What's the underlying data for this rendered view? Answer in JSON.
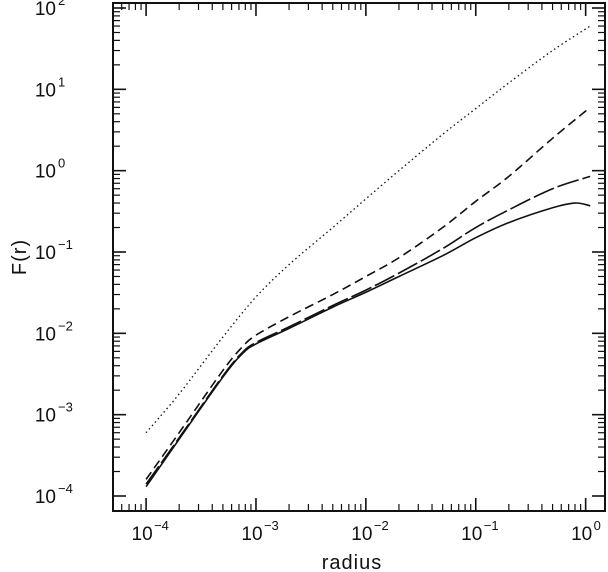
{
  "chart_data": {
    "type": "line",
    "title": "",
    "xlabel": "radius",
    "ylabel": "F(r)",
    "xscale": "log",
    "yscale": "log",
    "xlim": [
      5e-05,
      1.5
    ],
    "ylim": [
      0.0001,
      100
    ],
    "grid": false,
    "legend": "none",
    "x_ticks": [
      {
        "base": "10",
        "exp": "−4",
        "value": 0.0001
      },
      {
        "base": "10",
        "exp": "−3",
        "value": 0.001
      },
      {
        "base": "10",
        "exp": "−2",
        "value": 0.01
      },
      {
        "base": "10",
        "exp": "−1",
        "value": 0.1
      },
      {
        "base": "10",
        "exp": "0",
        "value": 1
      }
    ],
    "y_ticks": [
      {
        "base": "10",
        "exp": "−4",
        "value": 0.0001
      },
      {
        "base": "10",
        "exp": "−3",
        "value": 0.001
      },
      {
        "base": "10",
        "exp": "−2",
        "value": 0.01
      },
      {
        "base": "10",
        "exp": "−1",
        "value": 0.1
      },
      {
        "base": "10",
        "exp": "0",
        "value": 1
      },
      {
        "base": "10",
        "exp": "1",
        "value": 10
      },
      {
        "base": "10",
        "exp": "2",
        "value": 100
      }
    ],
    "series": [
      {
        "style": "dotted",
        "x": [
          0.0001,
          0.0002,
          0.0005,
          0.001,
          0.002,
          0.005,
          0.01,
          0.02,
          0.05,
          0.1,
          0.2,
          0.5,
          1.1
        ],
        "y": [
          0.0006,
          0.0018,
          0.009,
          0.028,
          0.07,
          0.2,
          0.45,
          1.0,
          2.8,
          5.8,
          12,
          30,
          60
        ]
      },
      {
        "style": "dashed",
        "x": [
          0.0001,
          0.0002,
          0.0005,
          0.00075,
          0.001,
          0.002,
          0.005,
          0.01,
          0.02,
          0.05,
          0.1,
          0.2,
          0.5,
          1.1
        ],
        "y": [
          0.00016,
          0.0006,
          0.0035,
          0.0068,
          0.0095,
          0.016,
          0.03,
          0.05,
          0.085,
          0.2,
          0.42,
          0.85,
          2.5,
          6
        ]
      },
      {
        "style": "long-dash",
        "x": [
          0.0001,
          0.0002,
          0.0005,
          0.00075,
          0.001,
          0.002,
          0.005,
          0.01,
          0.02,
          0.05,
          0.1,
          0.2,
          0.5,
          1.1
        ],
        "y": [
          0.00014,
          0.00052,
          0.003,
          0.0058,
          0.0077,
          0.012,
          0.022,
          0.034,
          0.055,
          0.11,
          0.2,
          0.33,
          0.6,
          0.85
        ]
      },
      {
        "style": "solid",
        "x": [
          0.0001,
          0.0002,
          0.0005,
          0.00075,
          0.001,
          0.002,
          0.005,
          0.01,
          0.02,
          0.05,
          0.1,
          0.2,
          0.5,
          0.8,
          1.1
        ],
        "y": [
          0.00013,
          0.0005,
          0.0029,
          0.0056,
          0.0074,
          0.0115,
          0.021,
          0.032,
          0.05,
          0.09,
          0.15,
          0.23,
          0.35,
          0.4,
          0.37
        ]
      }
    ]
  }
}
